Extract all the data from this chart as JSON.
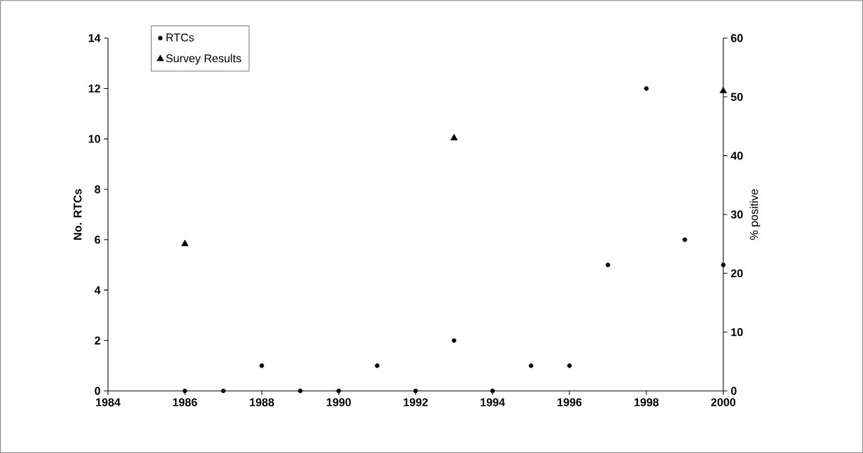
{
  "chart_data": {
    "type": "scatter",
    "xlabel": null,
    "ylabel": "No. RTCs",
    "y2label": "% positive",
    "xlim": [
      1984,
      2000
    ],
    "xticks": [
      1984,
      1986,
      1988,
      1990,
      1992,
      1994,
      1996,
      1998,
      2000
    ],
    "ylim": [
      0,
      14
    ],
    "yticks": [
      0,
      2,
      4,
      6,
      8,
      10,
      12,
      14
    ],
    "y2lim": [
      0,
      60
    ],
    "y2ticks": [
      0,
      10,
      20,
      30,
      40,
      50,
      60
    ],
    "grid": false,
    "legend": "top left",
    "series": [
      {
        "name": "RTCs",
        "color": "#000000",
        "marker": "circle",
        "x": [
          1986,
          1987,
          1988,
          1989,
          1990,
          1991,
          1992,
          1993,
          1994,
          1995,
          1996,
          1997,
          1998,
          1999,
          2000
        ],
        "values": [
          0,
          0,
          1,
          0,
          0,
          1,
          0,
          2,
          0,
          1,
          1,
          5,
          12,
          6,
          5
        ]
      },
      {
        "name": "Survey Results",
        "color": "#000000",
        "marker": "triangle",
        "axis": "y2",
        "x": [
          1986,
          1993,
          2000
        ],
        "values": [
          25,
          43,
          51
        ]
      }
    ]
  }
}
